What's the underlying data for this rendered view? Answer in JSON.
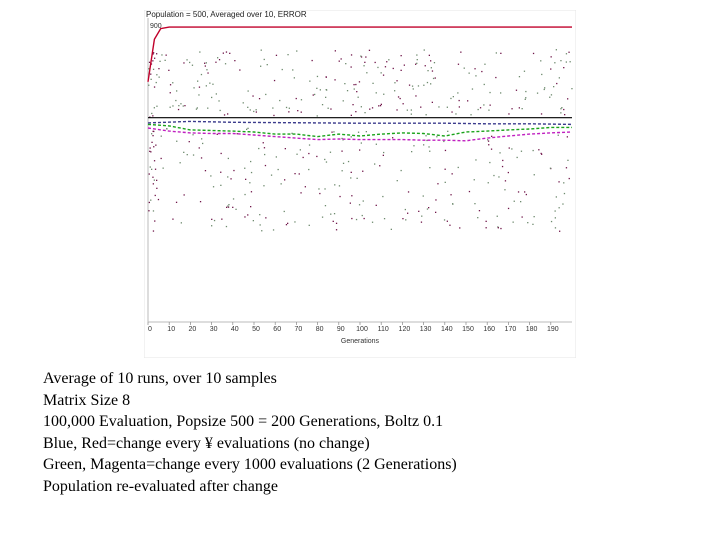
{
  "chart_data": {
    "type": "scatter",
    "title": "Population = 500, Averaged over 10, ERROR",
    "title_fragment": "900",
    "xlabel": "Generations",
    "x_ticks": [
      "0",
      "10",
      "20",
      "30",
      "40",
      "50",
      "60",
      "70",
      "80",
      "90",
      "100",
      "110",
      "120",
      "130",
      "140",
      "150",
      "160",
      "170",
      "180",
      "190"
    ],
    "xlim": [
      0,
      200
    ],
    "ylim": [
      0,
      1000
    ],
    "grid": false,
    "series": [
      {
        "role": "best fitness (flat)",
        "color": "#c0002a",
        "x": [
          0,
          3,
          6,
          10,
          20,
          40,
          80,
          120,
          160,
          200
        ],
        "y": [
          790,
          930,
          965,
          970,
          970,
          970,
          970,
          970,
          970,
          970
        ]
      },
      {
        "role": "reference (flat)",
        "color": "#000000",
        "x": [
          0,
          50,
          100,
          150,
          200
        ],
        "y": [
          672,
          672,
          672,
          672,
          672
        ]
      },
      {
        "role": "average fitness, no change",
        "color": "#3a3a8c",
        "x": [
          0,
          20,
          40,
          60,
          80,
          100,
          120,
          140,
          160,
          180,
          200
        ],
        "y": [
          655,
          660,
          657,
          656,
          655,
          654,
          654,
          654,
          652,
          652,
          650
        ]
      },
      {
        "role": "average fitness, change every 1000 evaluations",
        "color": "#1aa31a",
        "x": [
          0,
          10,
          20,
          30,
          40,
          50,
          60,
          70,
          80,
          90,
          100,
          110,
          120,
          130,
          140,
          150,
          160,
          170,
          180,
          190,
          200
        ],
        "y": [
          650,
          645,
          632,
          630,
          628,
          625,
          618,
          618,
          610,
          618,
          612,
          618,
          622,
          620,
          612,
          625,
          628,
          632,
          635,
          640,
          640
        ]
      },
      {
        "role": "average fitness (magenta), change every 1000 evaluations",
        "color": "#c020c0",
        "x": [
          0,
          10,
          20,
          30,
          40,
          50,
          60,
          70,
          80,
          90,
          100,
          110,
          120,
          130,
          140,
          150,
          160,
          170,
          180,
          190,
          200
        ],
        "y": [
          638,
          628,
          622,
          620,
          620,
          615,
          610,
          605,
          600,
          602,
          600,
          600,
          600,
          598,
          598,
          596,
          605,
          612,
          618,
          622,
          625
        ]
      }
    ],
    "colors": {
      "scatter_light": "#6e8a6e",
      "scatter_dark": "#70164a"
    }
  },
  "caption": {
    "lines": [
      "Average of 10 runs, over 10 samples",
      "Matrix Size 8",
      "100,000 Evaluation, Popsize 500 = 200 Generations, Boltz 0.1",
      "Blue, Red=change every ¥ evaluations (no change)",
      "Green, Magenta=change every 1000 evaluations (2 Generations)",
      "Population re-evaluated after change"
    ]
  }
}
